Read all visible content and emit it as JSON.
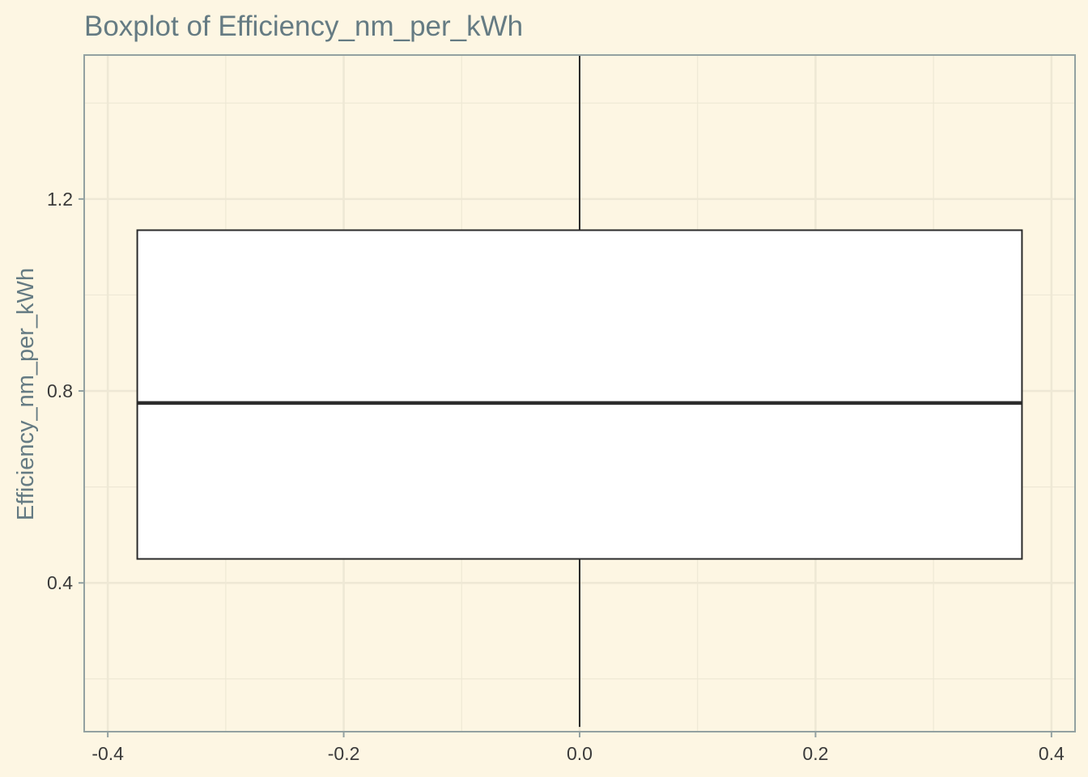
{
  "chart_data": {
    "type": "boxplot",
    "title": "Boxplot of Efficiency_nm_per_kWh",
    "xlabel": "",
    "ylabel": "Efficiency_nm_per_kWh",
    "xlim": [
      -0.42,
      0.42
    ],
    "ylim": [
      0.09,
      1.5
    ],
    "x_ticks": [
      -0.4,
      -0.2,
      0.0,
      0.2,
      0.4
    ],
    "x_tick_labels": [
      "-0.4",
      "-0.2",
      "0.0",
      "0.2",
      "0.4"
    ],
    "y_ticks": [
      0.4,
      0.8,
      1.2
    ],
    "y_tick_labels": [
      "0.4",
      "0.8",
      "1.2"
    ],
    "y_minor_ticks": [
      0.2,
      0.6,
      1.0,
      1.4
    ],
    "x_minor_ticks": [
      -0.3,
      -0.1,
      0.1,
      0.3
    ],
    "grid": true,
    "box": {
      "x_center": 0.0,
      "x_min": -0.375,
      "x_max": 0.375,
      "whisker_low": 0.1,
      "q1": 0.45,
      "median": 0.775,
      "q3": 1.135,
      "whisker_high": 1.5
    },
    "colors": {
      "background": "#fdf6e3",
      "grid": "#eee8d5",
      "axis": "#93a1a1",
      "box_fill": "#ffffff",
      "box_stroke": "#2b2b2b",
      "title": "#657b83"
    }
  }
}
